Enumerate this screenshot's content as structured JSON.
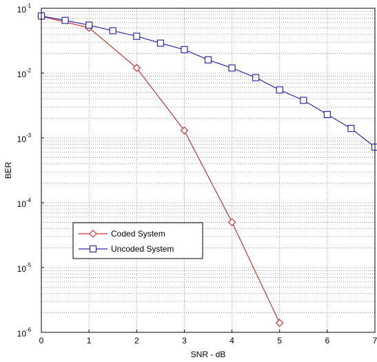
{
  "chart_data": {
    "type": "line",
    "title": "",
    "xlabel": "SNR - dB",
    "ylabel": "BER",
    "xlim": [
      0,
      7
    ],
    "ylim_log10": [
      -6,
      -1
    ],
    "yscale": "log",
    "grid": true,
    "legend_position": "lower-left",
    "x_ticks": [
      "0",
      "1",
      "2",
      "3",
      "4",
      "5",
      "6",
      "7"
    ],
    "y_ticks": [
      {
        "base": "10",
        "exp": "-6"
      },
      {
        "base": "10",
        "exp": "-5"
      },
      {
        "base": "10",
        "exp": "-4"
      },
      {
        "base": "10",
        "exp": "-3"
      },
      {
        "base": "10",
        "exp": "-2"
      },
      {
        "base": "10",
        "exp": "-1"
      }
    ],
    "series": [
      {
        "name": "Coded System",
        "color": "#d03030",
        "marker": "diamond",
        "x": [
          0,
          1,
          2,
          3,
          4,
          5
        ],
        "y": [
          0.075,
          0.05,
          0.012,
          0.0013,
          5e-05,
          1.4e-06
        ]
      },
      {
        "name": "Uncoded System",
        "color": "#2a2aa8",
        "marker": "square",
        "x": [
          0,
          0.5,
          1,
          1.5,
          2,
          2.5,
          3,
          3.5,
          4,
          4.5,
          5,
          5.5,
          6,
          6.5,
          7
        ],
        "y": [
          0.076,
          0.065,
          0.055,
          0.045,
          0.037,
          0.029,
          0.023,
          0.016,
          0.012,
          0.0085,
          0.0055,
          0.0038,
          0.0023,
          0.0014,
          0.00072
        ]
      }
    ]
  }
}
